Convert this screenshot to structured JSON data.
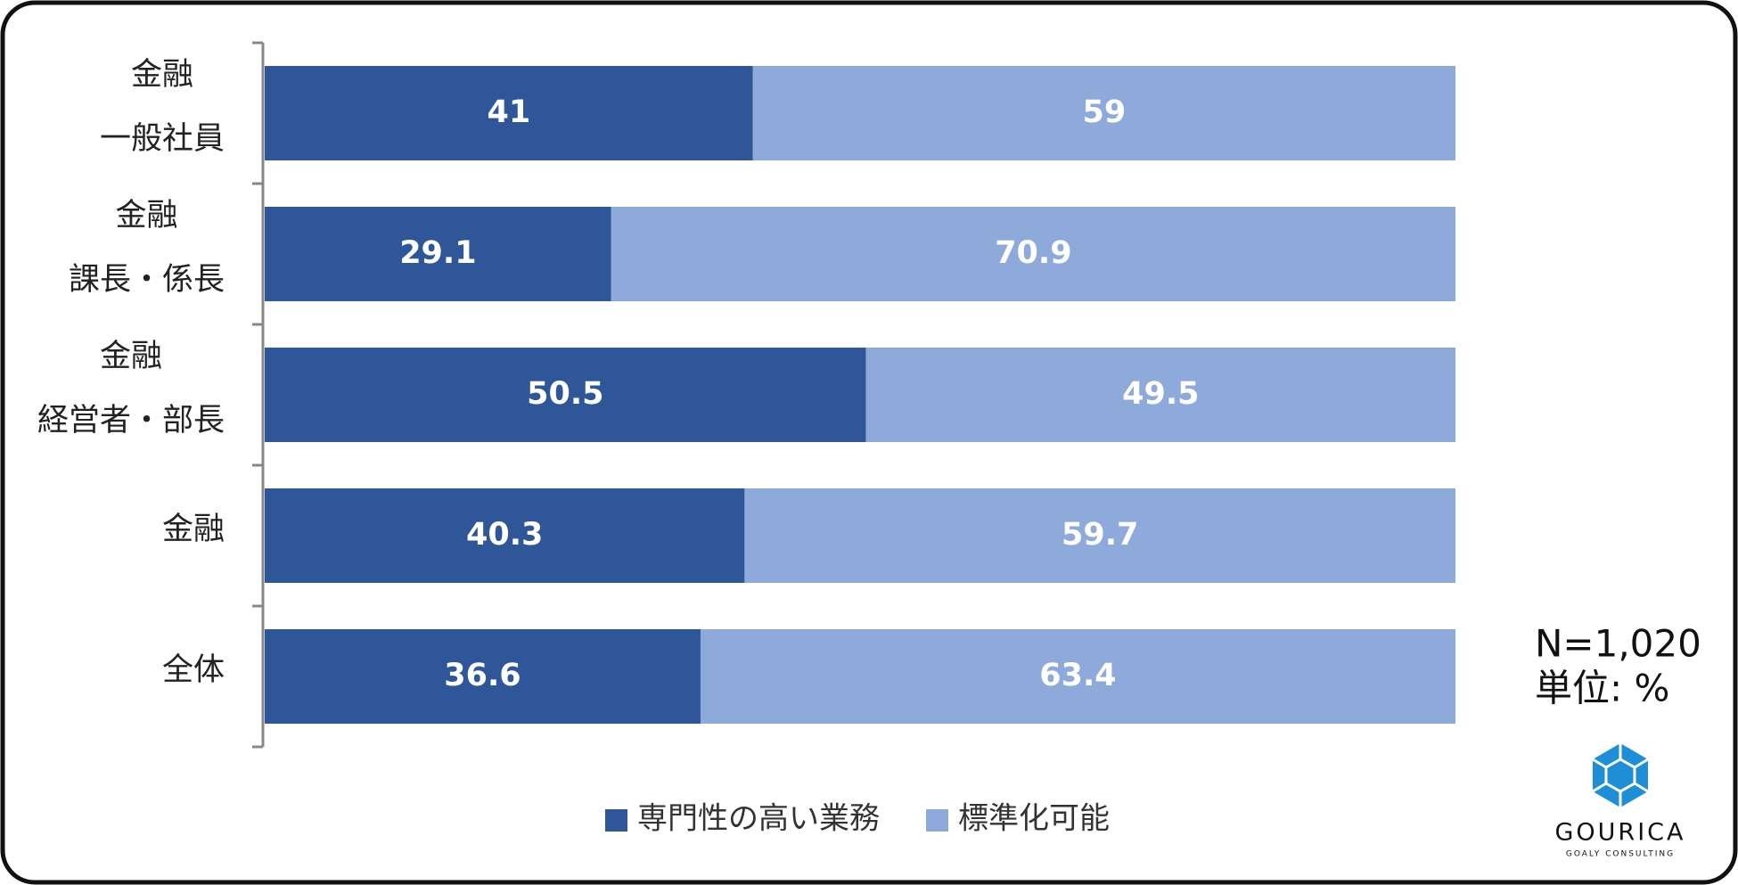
{
  "chart_data": {
    "type": "stacked-bar-horizontal",
    "categories": [
      [
        "金融",
        "一般社員"
      ],
      [
        "金融",
        "課長・係長"
      ],
      [
        "金融",
        "経営者・部長"
      ],
      [
        "金融"
      ],
      [
        "全体"
      ]
    ],
    "series": [
      {
        "name": "専門性の高い業務",
        "color": "#30569a",
        "values": [
          41,
          29.1,
          50.5,
          40.3,
          36.6
        ]
      },
      {
        "name": "標準化可能",
        "color": "#8eaadb",
        "values": [
          59,
          70.9,
          49.5,
          59.7,
          63.4
        ]
      }
    ],
    "xlim": [
      0,
      100
    ],
    "annotations": [
      "N=1,020",
      "単位: %"
    ],
    "logo": {
      "name": "GOURICA",
      "tagline": "GOALY CONSULTING"
    }
  }
}
